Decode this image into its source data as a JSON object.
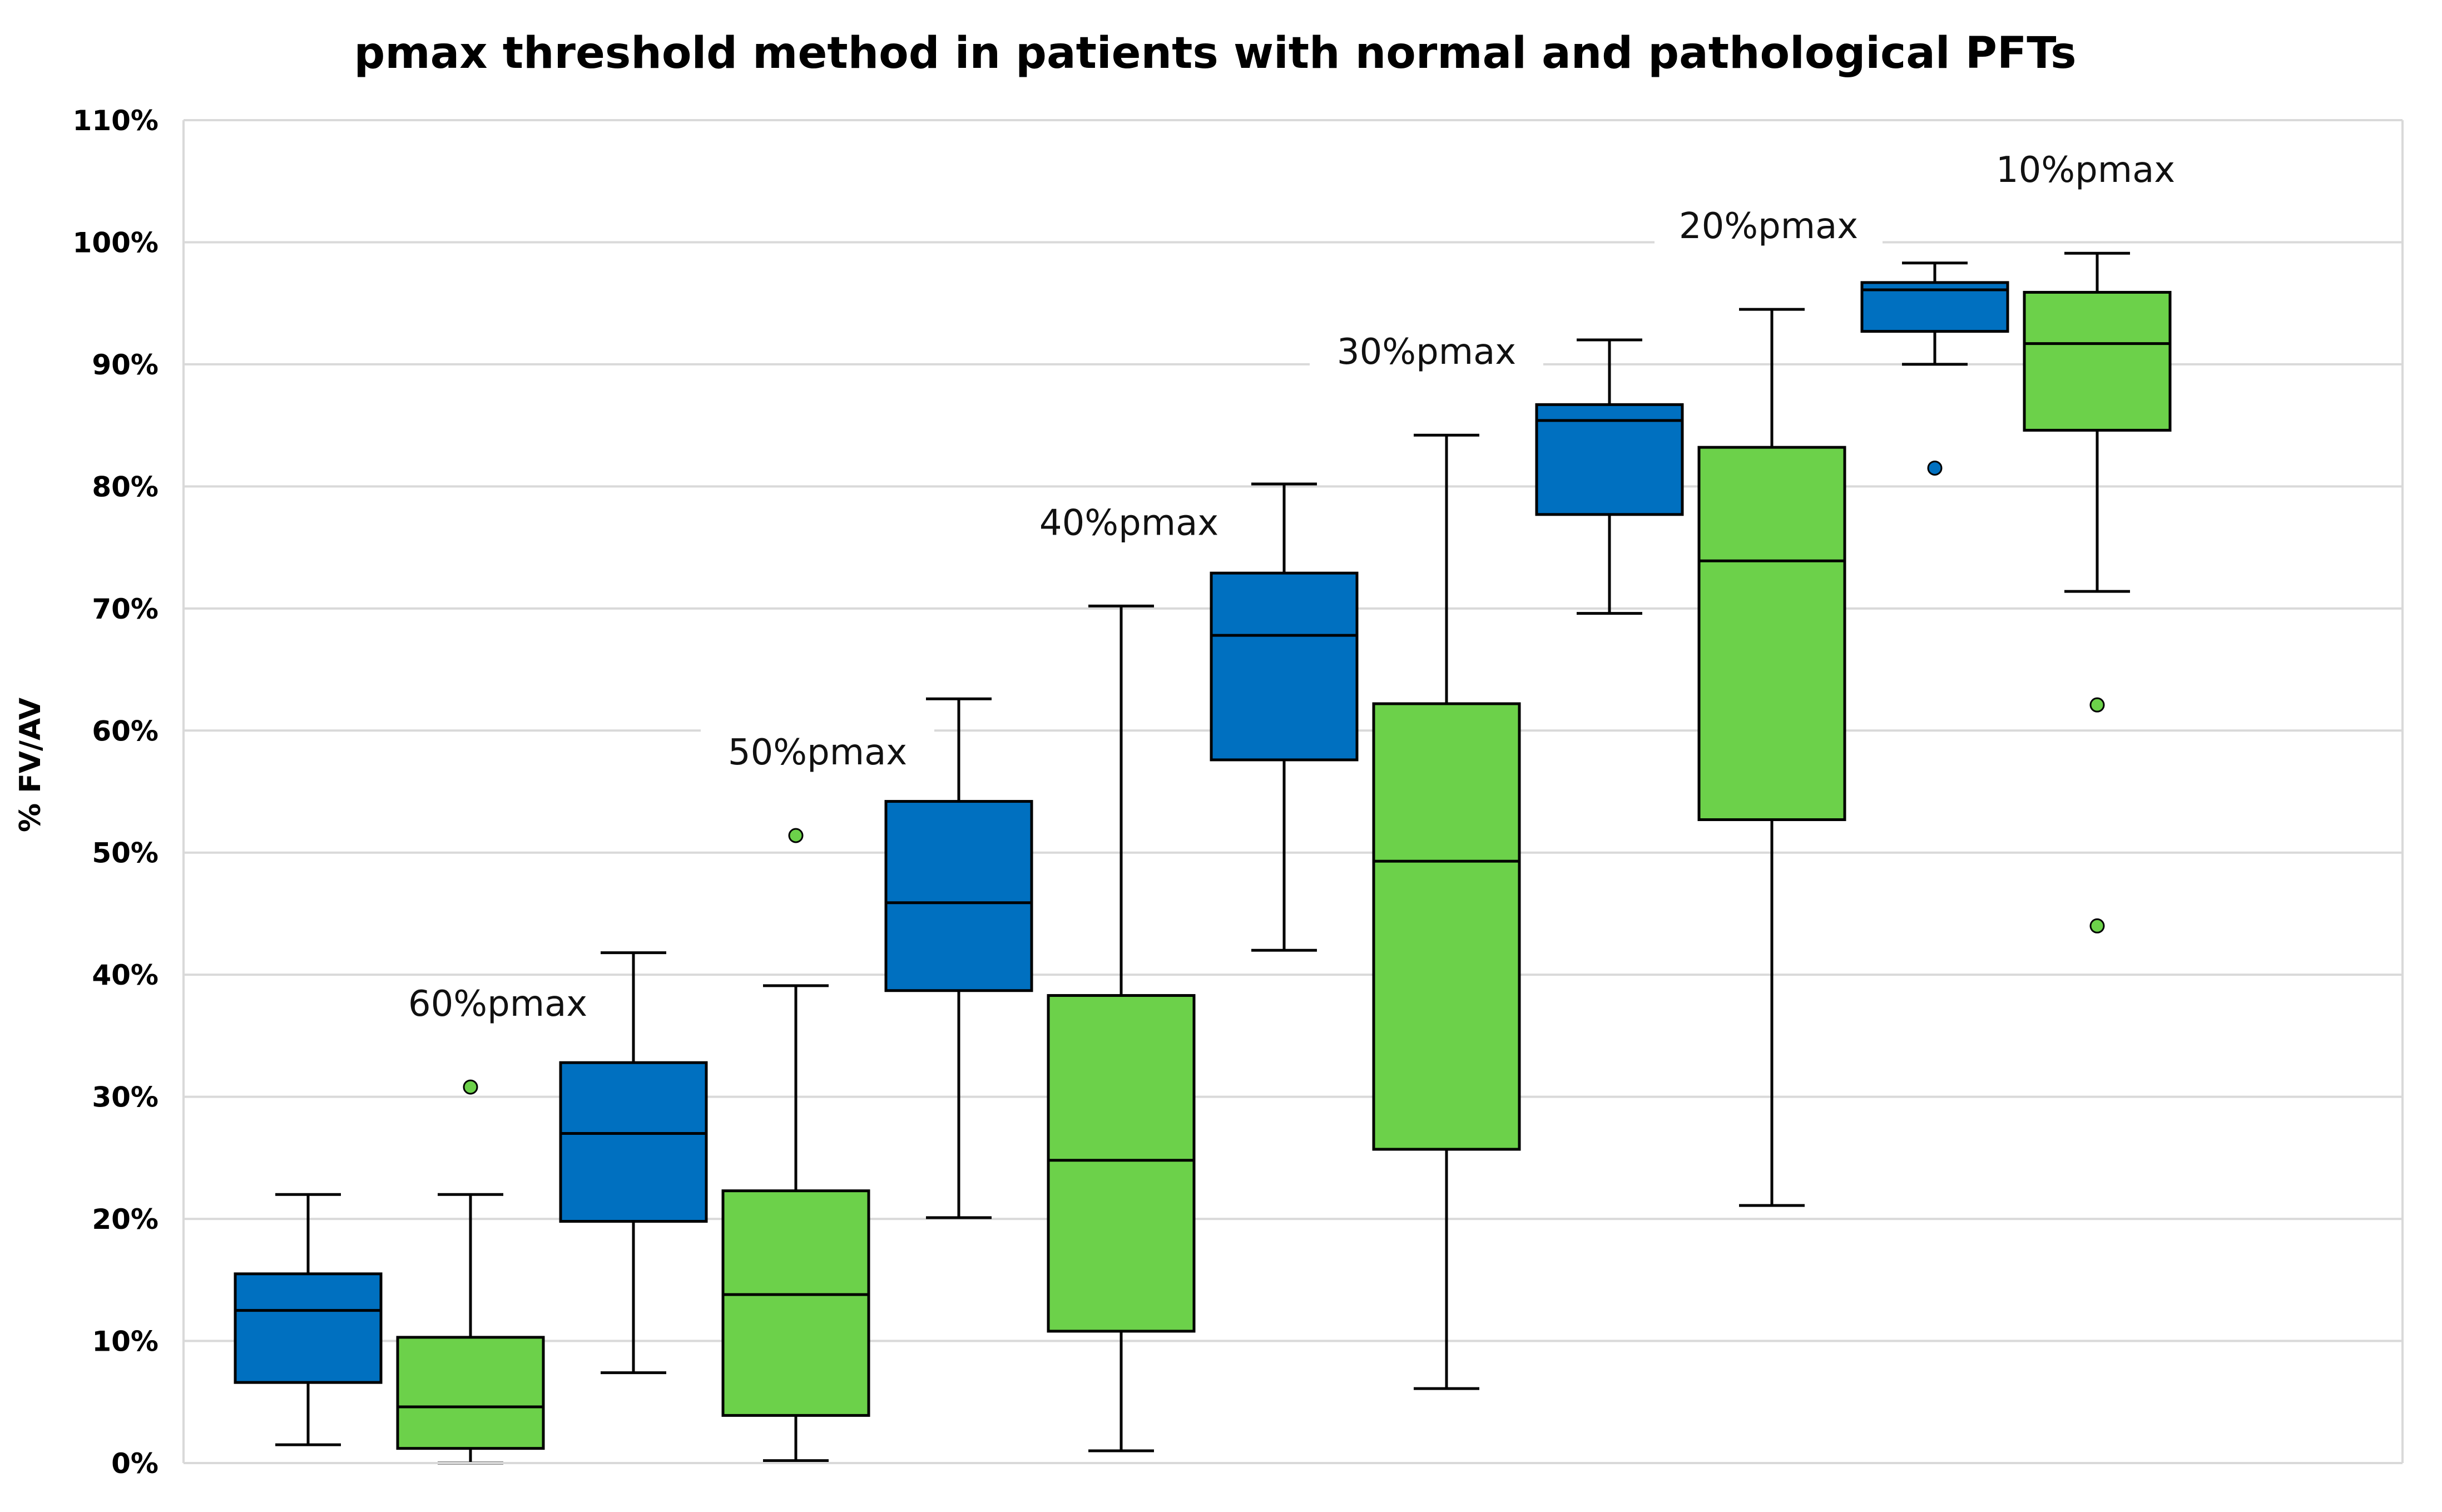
{
  "chart_data": {
    "type": "boxplot",
    "title": "pmax threshold method in patients with normal and pathological PFTs",
    "ylabel": "% FV/AV",
    "xlabel": "",
    "ylim": [
      0,
      110
    ],
    "y_ticks": [
      "0%",
      "10%",
      "20%",
      "30%",
      "40%",
      "50%",
      "60%",
      "70%",
      "80%",
      "90%",
      "100%",
      "110%"
    ],
    "grid": true,
    "colors": {
      "normal": "#0070C0",
      "pathological": "#6CD14A"
    },
    "groups": [
      {
        "label": "60%pmax",
        "boxes": [
          {
            "series": "normal",
            "min": 1.5,
            "q1": 6.6,
            "median": 12.5,
            "q3": 15.5,
            "max": 22,
            "outliers": []
          },
          {
            "series": "pathological",
            "min": 0,
            "q1": 1.2,
            "median": 4.6,
            "q3": 10.3,
            "max": 22,
            "outliers": [
              30.8
            ]
          }
        ]
      },
      {
        "label": "50%pmax",
        "boxes": [
          {
            "series": "normal",
            "min": 7.4,
            "q1": 19.8,
            "median": 27,
            "q3": 32.8,
            "max": 41.8,
            "outliers": []
          },
          {
            "series": "pathological",
            "min": 0.2,
            "q1": 3.9,
            "median": 13.8,
            "q3": 22.3,
            "max": 39.1,
            "outliers": [
              51.4
            ]
          }
        ]
      },
      {
        "label": "40%pmax",
        "boxes": [
          {
            "series": "normal",
            "min": 20.1,
            "q1": 38.7,
            "median": 45.9,
            "q3": 54.2,
            "max": 62.6,
            "outliers": []
          },
          {
            "series": "pathological",
            "min": 1,
            "q1": 10.8,
            "median": 24.8,
            "q3": 38.3,
            "max": 70.2,
            "outliers": []
          }
        ]
      },
      {
        "label": "30%pmax",
        "boxes": [
          {
            "series": "normal",
            "min": 42,
            "q1": 57.6,
            "median": 67.8,
            "q3": 72.9,
            "max": 80.2,
            "outliers": []
          },
          {
            "series": "pathological",
            "min": 6.1,
            "q1": 25.7,
            "median": 49.3,
            "q3": 62.2,
            "max": 84.2,
            "outliers": []
          }
        ]
      },
      {
        "label": "20%pmax",
        "boxes": [
          {
            "series": "normal",
            "min": 69.6,
            "q1": 77.7,
            "median": 85.4,
            "q3": 86.7,
            "max": 92,
            "outliers": []
          },
          {
            "series": "pathological",
            "min": 21.1,
            "q1": 52.7,
            "median": 73.9,
            "q3": 83.2,
            "max": 94.5,
            "outliers": []
          }
        ]
      },
      {
        "label": "10%pmax",
        "boxes": [
          {
            "series": "normal",
            "min": 90,
            "q1": 92.7,
            "median": 96.1,
            "q3": 96.7,
            "max": 98.3,
            "outliers": [
              81.5
            ]
          },
          {
            "series": "pathological",
            "min": 71.4,
            "q1": 84.6,
            "median": 91.7,
            "q3": 95.9,
            "max": 99.1,
            "outliers": [
              62.1,
              44
            ]
          }
        ]
      }
    ]
  }
}
